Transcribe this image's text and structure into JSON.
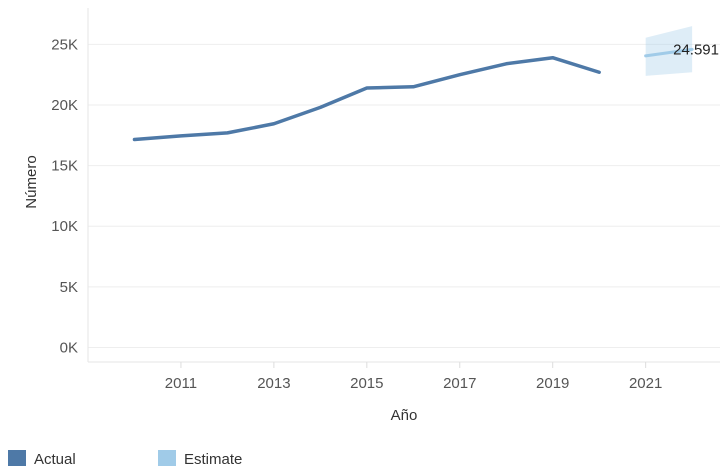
{
  "chart_data": {
    "type": "line",
    "title": "",
    "xlabel": "Año",
    "ylabel": "Número",
    "xlim": [
      2009,
      2022.6
    ],
    "ylim": [
      -1200,
      28000
    ],
    "y_ticks": [
      0,
      5000,
      10000,
      15000,
      20000,
      25000
    ],
    "y_tick_labels": [
      "0K",
      "5K",
      "10K",
      "15K",
      "20K",
      "25K"
    ],
    "x_ticks": [
      2011,
      2013,
      2015,
      2017,
      2019,
      2021
    ],
    "x_tick_labels": [
      "2011",
      "2013",
      "2015",
      "2017",
      "2019",
      "2021"
    ],
    "grid": true,
    "legend_position": "bottom-left",
    "series": [
      {
        "name": "Actual",
        "color": "#4e79a7",
        "x": [
          2010,
          2011,
          2012,
          2013,
          2014,
          2015,
          2016,
          2017,
          2018,
          2019,
          2020
        ],
        "y": [
          17150,
          17450,
          17700,
          18450,
          19800,
          21400,
          21500,
          22500,
          23400,
          23900,
          22700
        ]
      },
      {
        "name": "Estimate",
        "color": "#a0cbe8",
        "x": [
          2021,
          2022
        ],
        "y": [
          24050,
          24591
        ],
        "lower": [
          22400,
          22700
        ],
        "upper": [
          25550,
          26500
        ]
      }
    ],
    "annotations": [
      {
        "text": "24.591",
        "x": 2022,
        "y": 24591
      }
    ]
  }
}
